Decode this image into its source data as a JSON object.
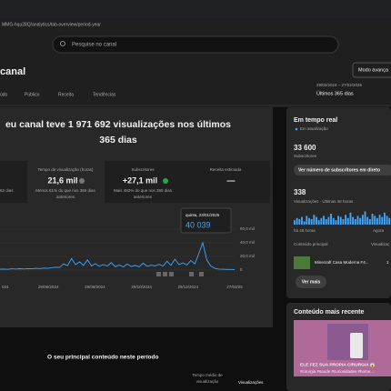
{
  "browser": {
    "url": "MMG-hqu28Q/analytics/tab-overview/period-year"
  },
  "header": {
    "search_placeholder": "Pesquise no canal",
    "title": "canal",
    "advanced_mode": "Modo avança"
  },
  "tabs": [
    "údo",
    "Público",
    "Receita",
    "Tendências"
  ],
  "period": {
    "range": "29/02/2024 – 27/02/2025",
    "label": "Últimos 365 dias"
  },
  "overview": {
    "headline_1": "eu canal teve 1 971 692 visualizações nos últimos",
    "headline_2": "365 dias",
    "partial_note": "62 dias",
    "metrics": [
      {
        "title": "Tempo de visualização (horas)",
        "value": "21,6 mil",
        "note_1": "Menos 61% do que nos 365 dias",
        "note_2": "anteriores"
      },
      {
        "title": "Subscritores",
        "value": "+27,1 mil",
        "note_1": "Mais 482% do que nos 365 dias",
        "note_2": "anteriores"
      },
      {
        "title": "Receita estimada",
        "value": "—"
      }
    ]
  },
  "chart": {
    "type": "line",
    "color": "#3ea6ff",
    "values": [
      1200,
      1500,
      1100,
      1800,
      1400,
      2000,
      1600,
      2200,
      1900,
      2500,
      2100,
      3000,
      2600,
      3500,
      4200,
      3800,
      9000,
      6500,
      17000,
      8000,
      12000,
      7000,
      15000,
      6000,
      9500,
      5500,
      8000,
      6000,
      11000,
      5000,
      7500,
      4500,
      9000,
      5200,
      6800,
      4800,
      10000,
      5500,
      7200,
      6000,
      8500,
      5800,
      13000,
      7000,
      16000,
      8000,
      10500,
      7500,
      14000,
      9000,
      24000,
      40039,
      15000,
      6000,
      2500,
      1500,
      1200,
      1000,
      900,
      800
    ],
    "ylim": [
      0,
      60000
    ],
    "yticks": [
      {
        "value": 0,
        "label": "0"
      },
      {
        "value": 20000,
        "label": "20,0 mil"
      },
      {
        "value": 40000,
        "label": "40,0 mil"
      },
      {
        "value": 60000,
        "label": "60,0 mil"
      }
    ],
    "xticks": [
      "024",
      "29/06/2024",
      "29/08/2024",
      "29/10/2024",
      "29/12/2024",
      "27/02/25"
    ],
    "tooltip": {
      "date": "quinta, 23/01/2025",
      "value": "40 039"
    }
  },
  "realtime": {
    "title": "Em tempo real",
    "status": "Em atualização",
    "subscribers": "33 600",
    "subscribers_label": "Subscritores",
    "live_button": "Ver número de subscritores em direto",
    "views": "338",
    "views_label": "Visualizações · Últimas 48 horas",
    "bars": [
      4,
      6,
      5,
      7,
      3,
      8,
      6,
      5,
      9,
      7,
      4,
      6,
      8,
      5,
      7,
      10,
      6,
      4,
      8,
      7,
      5,
      9,
      6,
      11,
      7,
      5,
      8,
      6,
      9,
      12,
      7,
      5,
      10,
      8,
      6,
      9,
      7,
      11,
      8,
      6
    ],
    "start_label": "há 48 horas",
    "end_label": "Agora",
    "top_content": "Conteúdo principal",
    "top_views_header": "Visualizaç",
    "top_item": "Minecraft Casa Moderna F4...",
    "top_item_views": "1",
    "more": "Ver mais"
  },
  "latest": {
    "title": "Conteúdo mais recente",
    "caption_1": "ELE FEZ SUA PROPIA CIRURGIA 😱",
    "caption_2": "#cirurgia #saude #curiosidades #home..."
  },
  "top_period": {
    "title": "O seu principal conteúdo neste período",
    "col_1a": "Tempo médio de",
    "col_1b": "visualização",
    "col_2": "Visualizações"
  }
}
